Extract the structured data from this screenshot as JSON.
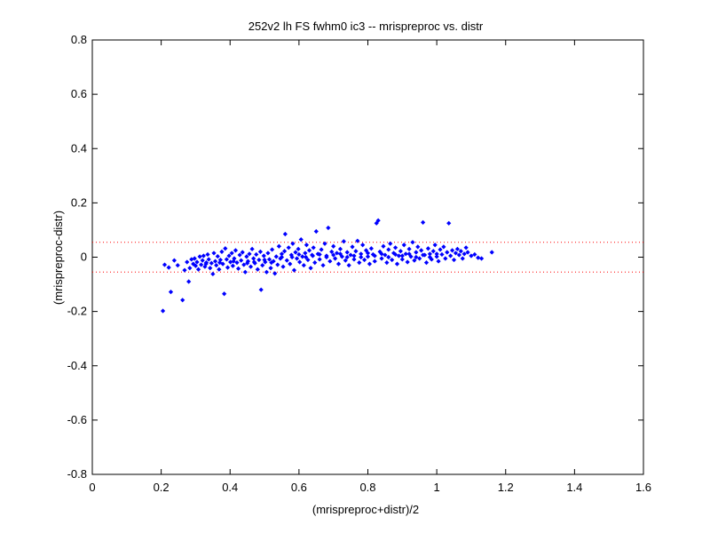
{
  "chart_data": {
    "type": "scatter",
    "title": "252v2 lh FS fwhm0 ic3 -- mrispreproc vs. distr",
    "xlabel": "(mrispreproc+distr)/2",
    "ylabel": "(mrispreproc-distr)",
    "xlim": [
      0,
      1.6
    ],
    "ylim": [
      -0.8,
      0.8
    ],
    "xticks": [
      "0",
      "0.2",
      "0.4",
      "0.6",
      "0.8",
      "1",
      "1.2",
      "1.4",
      "1.6"
    ],
    "yticks": [
      "-0.8",
      "-0.6",
      "-0.4",
      "-0.2",
      "0",
      "0.2",
      "0.4",
      "0.6",
      "0.8"
    ],
    "grid": false,
    "marker_color": "#0000ff",
    "reference_line_color": "#ff0000",
    "reference_lines": [
      0.055,
      -0.055
    ],
    "series": [
      {
        "points": [
          [
            0.205,
            -0.198
          ],
          [
            0.21,
            -0.028
          ],
          [
            0.222,
            -0.038
          ],
          [
            0.228,
            -0.128
          ],
          [
            0.238,
            -0.012
          ],
          [
            0.248,
            -0.03
          ],
          [
            0.262,
            -0.158
          ],
          [
            0.268,
            -0.048
          ],
          [
            0.275,
            -0.018
          ],
          [
            0.28,
            -0.09
          ],
          [
            0.283,
            -0.04
          ],
          [
            0.288,
            -0.008
          ],
          [
            0.293,
            -0.025
          ],
          [
            0.297,
            -0.005
          ],
          [
            0.3,
            -0.032
          ],
          [
            0.304,
            -0.018
          ],
          [
            0.308,
            -0.045
          ],
          [
            0.312,
            0.002
          ],
          [
            0.316,
            -0.028
          ],
          [
            0.32,
            -0.012
          ],
          [
            0.323,
            0.005
          ],
          [
            0.327,
            -0.035
          ],
          [
            0.331,
            -0.02
          ],
          [
            0.335,
            0.01
          ],
          [
            0.338,
            -0.008
          ],
          [
            0.342,
            -0.04
          ],
          [
            0.346,
            -0.022
          ],
          [
            0.35,
            -0.062
          ],
          [
            0.353,
            0.015
          ],
          [
            0.357,
            -0.015
          ],
          [
            0.36,
            -0.03
          ],
          [
            0.364,
            0.003
          ],
          [
            0.368,
            -0.045
          ],
          [
            0.372,
            -0.01
          ],
          [
            0.376,
            0.02
          ],
          [
            0.379,
            -0.025
          ],
          [
            0.383,
            -0.135
          ],
          [
            0.386,
            0.032
          ],
          [
            0.39,
            -0.008
          ],
          [
            0.393,
            -0.038
          ],
          [
            0.397,
            0.005
          ],
          [
            0.401,
            -0.018
          ],
          [
            0.405,
            0.015
          ],
          [
            0.408,
            -0.032
          ],
          [
            0.412,
            -0.005
          ],
          [
            0.416,
            0.025
          ],
          [
            0.42,
            -0.02
          ],
          [
            0.424,
            -0.042
          ],
          [
            0.428,
            0.008
          ],
          [
            0.432,
            -0.012
          ],
          [
            0.436,
            0.018
          ],
          [
            0.44,
            -0.028
          ],
          [
            0.444,
            -0.055
          ],
          [
            0.448,
            0.002
          ],
          [
            0.452,
            -0.015
          ],
          [
            0.456,
            0.012
          ],
          [
            0.46,
            -0.035
          ],
          [
            0.464,
            0.03
          ],
          [
            0.468,
            -0.005
          ],
          [
            0.472,
            -0.022
          ],
          [
            0.476,
            0.01
          ],
          [
            0.48,
            -0.045
          ],
          [
            0.484,
            -0.01
          ],
          [
            0.488,
            0.02
          ],
          [
            0.49,
            -0.12
          ],
          [
            0.494,
            -0.03
          ],
          [
            0.498,
            0.005
          ],
          [
            0.502,
            -0.018
          ],
          [
            0.506,
            -0.055
          ],
          [
            0.51,
            0.015
          ],
          [
            0.514,
            -0.008
          ],
          [
            0.518,
            -0.04
          ],
          [
            0.522,
            0.028
          ],
          [
            0.526,
            -0.015
          ],
          [
            0.53,
            -0.06
          ],
          [
            0.534,
            0.002
          ],
          [
            0.538,
            -0.028
          ],
          [
            0.542,
            0.04
          ],
          [
            0.546,
            -0.005
          ],
          [
            0.55,
            0.012
          ],
          [
            0.554,
            -0.035
          ],
          [
            0.558,
            0.022
          ],
          [
            0.56,
            0.085
          ],
          [
            0.565,
            -0.012
          ],
          [
            0.57,
            0.035
          ],
          [
            0.574,
            -0.025
          ],
          [
            0.578,
            0.008
          ],
          [
            0.582,
            0.05
          ],
          [
            0.586,
            -0.048
          ],
          [
            0.59,
            0.018
          ],
          [
            0.594,
            -0.005
          ],
          [
            0.598,
            0.03
          ],
          [
            0.602,
            -0.018
          ],
          [
            0.606,
            0.065
          ],
          [
            0.61,
            0.002
          ],
          [
            0.614,
            -0.03
          ],
          [
            0.618,
            0.015
          ],
          [
            0.622,
            0.045
          ],
          [
            0.626,
            -0.01
          ],
          [
            0.63,
            0.025
          ],
          [
            0.634,
            -0.04
          ],
          [
            0.638,
            0.008
          ],
          [
            0.642,
            0.035
          ],
          [
            0.646,
            -0.02
          ],
          [
            0.65,
            0.095
          ],
          [
            0.655,
            0.012
          ],
          [
            0.66,
            -0.008
          ],
          [
            0.665,
            0.028
          ],
          [
            0.67,
            -0.03
          ],
          [
            0.675,
            0.05
          ],
          [
            0.68,
            0.005
          ],
          [
            0.685,
            0.108
          ],
          [
            0.69,
            -0.015
          ],
          [
            0.695,
            0.02
          ],
          [
            0.7,
            0.04
          ],
          [
            0.705,
            -0.005
          ],
          [
            0.71,
            0.015
          ],
          [
            0.715,
            -0.025
          ],
          [
            0.72,
            0.03
          ],
          [
            0.725,
            0.002
          ],
          [
            0.73,
            0.058
          ],
          [
            0.735,
            -0.012
          ],
          [
            0.74,
            0.018
          ],
          [
            0.745,
            -0.03
          ],
          [
            0.75,
            0.008
          ],
          [
            0.755,
            0.038
          ],
          [
            0.76,
            -0.008
          ],
          [
            0.765,
            0.022
          ],
          [
            0.77,
            0.06
          ],
          [
            0.775,
            -0.02
          ],
          [
            0.78,
            0.012
          ],
          [
            0.785,
            0.045
          ],
          [
            0.79,
            -0.01
          ],
          [
            0.795,
            0.025
          ],
          [
            0.8,
            0.002
          ],
          [
            0.805,
            -0.025
          ],
          [
            0.81,
            0.032
          ],
          [
            0.815,
            0.01
          ],
          [
            0.82,
            -0.015
          ],
          [
            0.825,
            0.125
          ],
          [
            0.83,
            0.135
          ],
          [
            0.835,
            0.02
          ],
          [
            0.84,
            -0.005
          ],
          [
            0.845,
            0.04
          ],
          [
            0.85,
            0.008
          ],
          [
            0.855,
            -0.02
          ],
          [
            0.86,
            0.028
          ],
          [
            0.865,
            0.05
          ],
          [
            0.87,
            -0.01
          ],
          [
            0.875,
            0.015
          ],
          [
            0.88,
            0.035
          ],
          [
            0.885,
            -0.025
          ],
          [
            0.89,
            0.005
          ],
          [
            0.895,
            0.022
          ],
          [
            0.9,
            -0.008
          ],
          [
            0.905,
            0.045
          ],
          [
            0.91,
            0.012
          ],
          [
            0.915,
            -0.018
          ],
          [
            0.92,
            0.03
          ],
          [
            0.925,
            0.002
          ],
          [
            0.93,
            0.055
          ],
          [
            0.935,
            -0.012
          ],
          [
            0.94,
            0.018
          ],
          [
            0.945,
            0.038
          ],
          [
            0.95,
            -0.005
          ],
          [
            0.955,
            0.025
          ],
          [
            0.96,
            0.128
          ],
          [
            0.965,
            0.008
          ],
          [
            0.97,
            -0.02
          ],
          [
            0.975,
            0.032
          ],
          [
            0.98,
            0.012
          ],
          [
            0.985,
            -0.008
          ],
          [
            0.99,
            0.022
          ],
          [
            0.995,
            0.045
          ],
          [
            1.0,
            0.002
          ],
          [
            1.005,
            -0.015
          ],
          [
            1.01,
            0.028
          ],
          [
            1.015,
            0.01
          ],
          [
            1.02,
            0.038
          ],
          [
            1.025,
            -0.005
          ],
          [
            1.03,
            0.018
          ],
          [
            1.035,
            0.125
          ],
          [
            1.04,
            0.005
          ],
          [
            1.045,
            0.025
          ],
          [
            1.05,
            -0.01
          ],
          [
            1.055,
            0.015
          ],
          [
            1.06,
            0.03
          ],
          [
            1.065,
            0.008
          ],
          [
            1.07,
            0.022
          ],
          [
            1.075,
            -0.005
          ],
          [
            1.08,
            0.012
          ],
          [
            1.085,
            0.035
          ],
          [
            1.09,
            0.018
          ],
          [
            1.1,
            0.005
          ],
          [
            1.11,
            0.01
          ],
          [
            1.12,
            -0.002
          ],
          [
            1.13,
            -0.005
          ],
          [
            1.16,
            0.018
          ],
          [
            0.33,
            -0.025
          ],
          [
            0.37,
            -0.02
          ],
          [
            0.41,
            -0.015
          ],
          [
            0.45,
            -0.022
          ],
          [
            0.47,
            -0.018
          ],
          [
            0.5,
            -0.01
          ],
          [
            0.52,
            -0.02
          ],
          [
            0.55,
            0.0
          ],
          [
            0.58,
            0.0
          ],
          [
            0.6,
            0.01
          ],
          [
            0.62,
            0.0
          ],
          [
            0.64,
            0.005
          ],
          [
            0.66,
            0.01
          ],
          [
            0.68,
            0.0
          ],
          [
            0.7,
            0.008
          ],
          [
            0.72,
            0.012
          ],
          [
            0.74,
            0.0
          ],
          [
            0.76,
            0.005
          ],
          [
            0.78,
            0.0
          ],
          [
            0.8,
            0.015
          ],
          [
            0.82,
            0.005
          ],
          [
            0.84,
            0.012
          ],
          [
            0.86,
            0.0
          ],
          [
            0.88,
            0.01
          ],
          [
            0.9,
            0.005
          ],
          [
            0.92,
            0.012
          ],
          [
            0.94,
            0.0
          ],
          [
            0.96,
            0.008
          ],
          [
            0.98,
            0.0
          ],
          [
            1.0,
            0.012
          ]
        ]
      }
    ]
  }
}
